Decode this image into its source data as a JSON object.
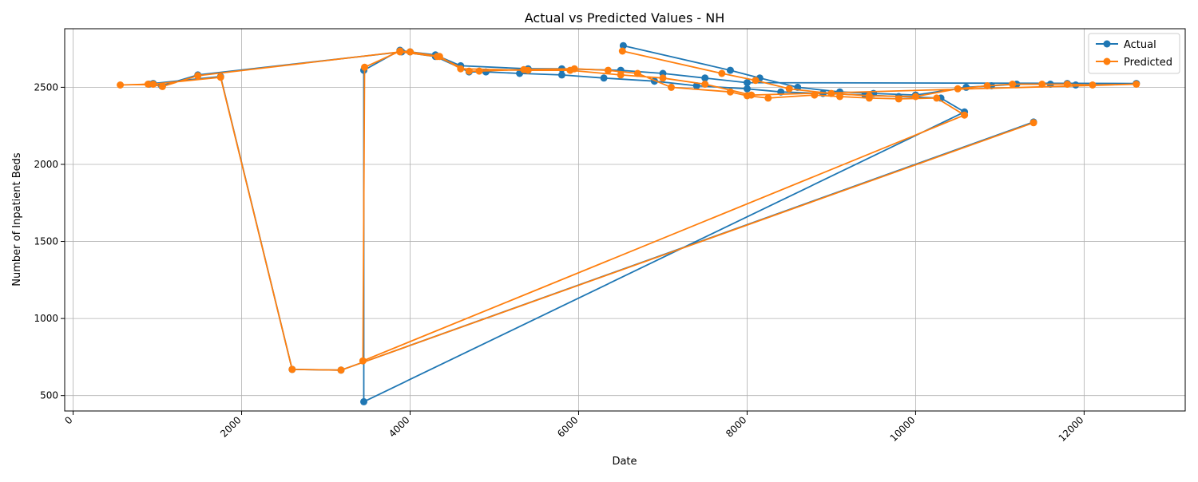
{
  "chart_data": {
    "type": "line",
    "title": "Actual vs Predicted Values - NH",
    "xlabel": "Date",
    "ylabel": "Number of Inpatient Beds",
    "xlim": [
      -100,
      13200
    ],
    "ylim": [
      400,
      2880
    ],
    "x_ticks": [
      0,
      2000,
      4000,
      6000,
      8000,
      10000,
      12000
    ],
    "x_tick_labels": [
      "0",
      "2000",
      "4000",
      "6000",
      "8000",
      "10000",
      "12000"
    ],
    "y_ticks": [
      500,
      1000,
      1500,
      2000,
      2500
    ],
    "y_tick_labels": [
      "500",
      "1000",
      "1500",
      "2000",
      "2500"
    ],
    "grid": true,
    "legend_position": "top-right",
    "series": [
      {
        "name": "Actual",
        "color": "#1f77b4",
        "x": [
          6530,
          7800,
          8150,
          8600,
          9100,
          9500,
          10000,
          10600,
          10900,
          11200,
          11600,
          11800,
          11900,
          12620,
          8000,
          7500,
          7000,
          6500,
          5800,
          5400,
          4600,
          4300,
          4000,
          3880,
          3450,
          3450,
          10580,
          10300,
          9800,
          9400,
          8900,
          8400,
          8000,
          7400,
          6900,
          6300,
          5800,
          5300,
          4900,
          4700,
          4300,
          3900,
          1480,
          1050,
          900,
          950,
          1750,
          2600,
          3180,
          11400
        ],
        "y": [
          2770,
          2610,
          2560,
          2500,
          2470,
          2460,
          2450,
          2500,
          2510,
          2520,
          2520,
          2525,
          2515,
          2525,
          2530,
          2560,
          2590,
          2610,
          2620,
          2620,
          2640,
          2710,
          2730,
          2740,
          2610,
          460,
          2340,
          2430,
          2440,
          2450,
          2460,
          2470,
          2490,
          2510,
          2540,
          2560,
          2580,
          2590,
          2600,
          2600,
          2700,
          2730,
          2580,
          2510,
          2520,
          2525,
          2570,
          670,
          665,
          2275
        ]
      },
      {
        "name": "Predicted",
        "color": "#ff7f0e",
        "x": [
          6520,
          7700,
          8100,
          8500,
          9000,
          9450,
          10000,
          10500,
          10850,
          11150,
          11500,
          11800,
          12100,
          12620,
          8050,
          7500,
          7000,
          6500,
          5900,
          5400,
          4600,
          4350,
          4000,
          3880,
          3460,
          3440,
          10580,
          10250,
          9800,
          9450,
          9100,
          8800,
          8250,
          8000,
          7800,
          7100,
          6700,
          6350,
          5950,
          5350,
          4820,
          4700,
          4320,
          3880,
          1480,
          1060,
          890,
          560,
          950,
          1750,
          2600,
          3180,
          11400
        ],
        "y": [
          2735,
          2590,
          2545,
          2490,
          2460,
          2445,
          2440,
          2490,
          2510,
          2520,
          2520,
          2520,
          2515,
          2520,
          2450,
          2520,
          2560,
          2580,
          2610,
          2610,
          2620,
          2700,
          2730,
          2735,
          2630,
          725,
          2320,
          2430,
          2425,
          2430,
          2440,
          2450,
          2430,
          2445,
          2470,
          2500,
          2590,
          2610,
          2620,
          2615,
          2605,
          2605,
          2700,
          2730,
          2575,
          2505,
          2520,
          2515,
          2520,
          2565,
          670,
          665,
          2270
        ]
      }
    ]
  }
}
